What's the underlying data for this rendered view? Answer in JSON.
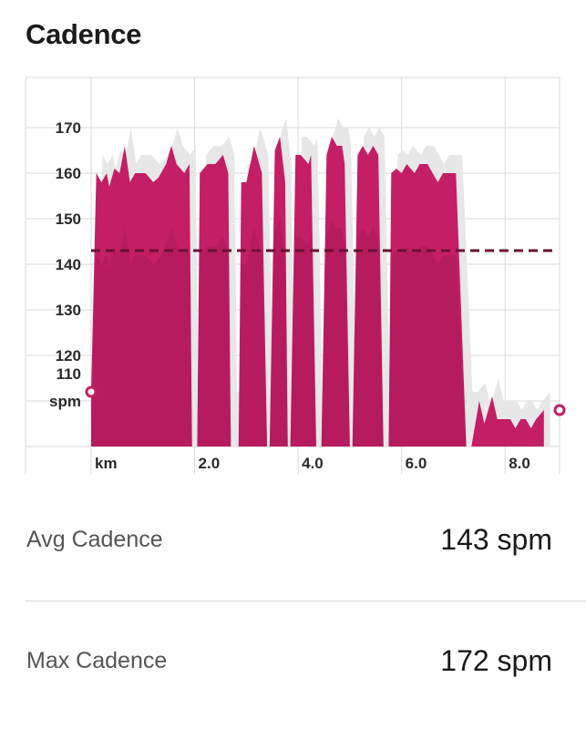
{
  "section_title": "Cadence",
  "chart_data": {
    "type": "area",
    "title": "Cadence",
    "xlabel": "km",
    "ylabel": "spm",
    "xlim": [
      0,
      9.0
    ],
    "ylim": [
      100,
      181
    ],
    "x_ticks": [
      2.0,
      4.0,
      6.0,
      8.0
    ],
    "x_tick_labels": [
      "km",
      "2.0",
      "4.0",
      "6.0",
      "8.0"
    ],
    "y_ticks": [
      110,
      120,
      130,
      140,
      150,
      160,
      170
    ],
    "y_tick_labels": [
      "spm",
      "120",
      "130",
      "140",
      "150",
      "160",
      "170"
    ],
    "y_extra_label": "110",
    "grid": true,
    "average_line": 143,
    "series": [
      {
        "values": [
          [
            0.0,
            112
          ],
          [
            0.1,
            160
          ],
          [
            0.2,
            158
          ],
          [
            0.3,
            160
          ],
          [
            0.35,
            157
          ],
          [
            0.45,
            161
          ],
          [
            0.55,
            160
          ],
          [
            0.65,
            166
          ],
          [
            0.75,
            158
          ],
          [
            0.85,
            160
          ],
          [
            1.05,
            160
          ],
          [
            1.2,
            158
          ],
          [
            1.3,
            159
          ],
          [
            1.45,
            162
          ],
          [
            1.55,
            166
          ],
          [
            1.65,
            162
          ],
          [
            1.8,
            160
          ],
          [
            1.9,
            162
          ],
          [
            1.95,
            100
          ],
          [
            2.05,
            100
          ],
          [
            2.1,
            160
          ],
          [
            2.25,
            162
          ],
          [
            2.4,
            162
          ],
          [
            2.55,
            164
          ],
          [
            2.65,
            160
          ],
          [
            2.7,
            100
          ],
          [
            2.85,
            100
          ],
          [
            2.9,
            158
          ],
          [
            3.0,
            158
          ],
          [
            3.15,
            166
          ],
          [
            3.3,
            160
          ],
          [
            3.4,
            100
          ],
          [
            3.45,
            100
          ],
          [
            3.55,
            165
          ],
          [
            3.65,
            168
          ],
          [
            3.75,
            158
          ],
          [
            3.8,
            100
          ],
          [
            3.85,
            100
          ],
          [
            3.95,
            164
          ],
          [
            4.05,
            164
          ],
          [
            4.2,
            162
          ],
          [
            4.25,
            164
          ],
          [
            4.35,
            100
          ],
          [
            4.45,
            100
          ],
          [
            4.55,
            164
          ],
          [
            4.65,
            168
          ],
          [
            4.75,
            166
          ],
          [
            4.85,
            166
          ],
          [
            4.9,
            162
          ],
          [
            5.0,
            100
          ],
          [
            5.05,
            100
          ],
          [
            5.15,
            164
          ],
          [
            5.25,
            166
          ],
          [
            5.35,
            164
          ],
          [
            5.45,
            166
          ],
          [
            5.55,
            164
          ],
          [
            5.65,
            100
          ],
          [
            5.75,
            100
          ],
          [
            5.8,
            160
          ],
          [
            5.9,
            161
          ],
          [
            6.0,
            160
          ],
          [
            6.1,
            162
          ],
          [
            6.25,
            160
          ],
          [
            6.35,
            162
          ],
          [
            6.5,
            162
          ],
          [
            6.6,
            160
          ],
          [
            6.7,
            158
          ],
          [
            6.8,
            160
          ],
          [
            6.9,
            160
          ],
          [
            7.0,
            160
          ],
          [
            7.05,
            160
          ],
          [
            7.25,
            100
          ],
          [
            7.35,
            100
          ],
          [
            7.5,
            110
          ],
          [
            7.6,
            105
          ],
          [
            7.75,
            111
          ],
          [
            7.85,
            106
          ],
          [
            8.0,
            106
          ],
          [
            8.1,
            106
          ],
          [
            8.2,
            104
          ],
          [
            8.3,
            106
          ],
          [
            8.4,
            106
          ],
          [
            8.5,
            104
          ],
          [
            8.6,
            106
          ],
          [
            8.75,
            108
          ]
        ]
      }
    ]
  },
  "stats": [
    {
      "label": "Avg Cadence",
      "value": "143 spm"
    },
    {
      "label": "Max Cadence",
      "value": "172 spm"
    }
  ],
  "colors": {
    "area": "#c41e64",
    "area_dark": "#9e1650",
    "ghost_area": "#e7e7e7",
    "average_line": "#6a1032",
    "grid": "#d9d9d9",
    "marker": "#c41e64"
  }
}
